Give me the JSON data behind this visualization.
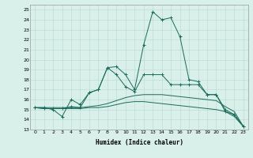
{
  "xlabel": "Humidex (Indice chaleur)",
  "ylabel": "",
  "bg_color": "#d8efea",
  "line_color": "#1a6b5a",
  "grid_color": "#b8d8d0",
  "xlim": [
    -0.5,
    23.5
  ],
  "ylim": [
    13,
    25.5
  ],
  "yticks": [
    13,
    14,
    15,
    16,
    17,
    18,
    19,
    20,
    21,
    22,
    23,
    24,
    25
  ],
  "xticks": [
    0,
    1,
    2,
    3,
    4,
    5,
    6,
    7,
    8,
    9,
    10,
    11,
    12,
    13,
    14,
    15,
    16,
    17,
    18,
    19,
    20,
    21,
    22,
    23
  ],
  "series": [
    {
      "x": [
        0,
        1,
        2,
        3,
        4,
        5,
        6,
        7,
        8,
        9,
        10,
        11,
        12,
        13,
        14,
        15,
        16,
        17,
        18,
        19,
        20,
        21,
        22,
        23
      ],
      "y": [
        15.2,
        15.2,
        15.0,
        14.3,
        16.0,
        15.5,
        16.7,
        17.0,
        19.2,
        19.3,
        18.5,
        17.0,
        21.5,
        24.8,
        24.0,
        24.2,
        22.3,
        18.0,
        17.8,
        16.5,
        16.5,
        14.8,
        14.5,
        13.3
      ],
      "marker": "+"
    },
    {
      "x": [
        0,
        1,
        2,
        3,
        4,
        5,
        6,
        7,
        8,
        9,
        10,
        11,
        12,
        13,
        14,
        15,
        16,
        17,
        18,
        19,
        20,
        21,
        22,
        23
      ],
      "y": [
        15.2,
        15.1,
        15.1,
        15.1,
        15.3,
        15.2,
        16.7,
        17.0,
        19.2,
        18.5,
        17.3,
        16.8,
        18.5,
        18.5,
        18.5,
        17.5,
        17.5,
        17.5,
        17.5,
        16.5,
        16.5,
        15.0,
        14.5,
        13.3
      ],
      "marker": "+"
    },
    {
      "x": [
        0,
        1,
        2,
        3,
        4,
        5,
        6,
        7,
        8,
        9,
        10,
        11,
        12,
        13,
        14,
        15,
        16,
        17,
        18,
        19,
        20,
        21,
        22,
        23
      ],
      "y": [
        15.2,
        15.2,
        15.2,
        15.2,
        15.2,
        15.2,
        15.3,
        15.4,
        15.6,
        15.9,
        16.2,
        16.4,
        16.5,
        16.5,
        16.5,
        16.4,
        16.3,
        16.2,
        16.1,
        16.0,
        15.9,
        15.3,
        14.8,
        13.3
      ],
      "marker": null
    },
    {
      "x": [
        0,
        1,
        2,
        3,
        4,
        5,
        6,
        7,
        8,
        9,
        10,
        11,
        12,
        13,
        14,
        15,
        16,
        17,
        18,
        19,
        20,
        21,
        22,
        23
      ],
      "y": [
        15.2,
        15.1,
        15.1,
        15.1,
        15.1,
        15.1,
        15.2,
        15.2,
        15.3,
        15.5,
        15.7,
        15.8,
        15.8,
        15.7,
        15.6,
        15.5,
        15.4,
        15.3,
        15.2,
        15.1,
        15.0,
        14.8,
        14.3,
        13.3
      ],
      "marker": null
    }
  ]
}
